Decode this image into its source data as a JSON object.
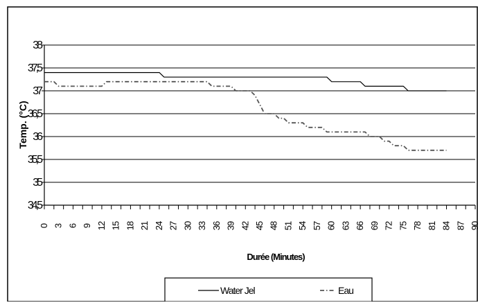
{
  "chart_data": {
    "type": "line",
    "xlabel": "Durée (Minutes)",
    "ylabel": "Temp. (°C)",
    "ylim": [
      34.5,
      38
    ],
    "yticks": [
      34.5,
      35,
      35.5,
      36,
      36.5,
      37,
      37.5,
      38
    ],
    "ytick_labels": [
      "34,5",
      "35",
      "35,5",
      "36",
      "36,5",
      "37",
      "37,5",
      "38"
    ],
    "x": [
      0,
      1,
      2,
      3,
      4,
      5,
      6,
      7,
      8,
      9,
      10,
      11,
      12,
      13,
      14,
      15,
      16,
      17,
      18,
      19,
      20,
      21,
      22,
      23,
      24,
      25,
      26,
      27,
      28,
      29,
      30,
      31,
      32,
      33,
      34,
      35,
      36,
      37,
      38,
      39,
      40,
      41,
      42,
      43,
      44,
      45,
      46,
      47,
      48,
      49,
      50,
      51,
      52,
      53,
      54,
      55,
      56,
      57,
      58,
      59,
      60,
      61,
      62,
      63,
      64,
      65,
      66,
      67,
      68,
      69,
      70,
      71,
      72,
      73,
      74,
      75,
      76,
      77,
      78,
      79,
      80,
      81,
      82,
      83,
      84,
      85,
      86,
      87,
      88,
      89,
      90
    ],
    "xtick_labels": [
      "0",
      "3",
      "6",
      "9",
      "12",
      "15",
      "18",
      "21",
      "24",
      "27",
      "30",
      "33",
      "36",
      "39",
      "42",
      "45",
      "48",
      "51",
      "54",
      "57",
      "60",
      "63",
      "66",
      "69",
      "72",
      "75",
      "78",
      "81",
      "84",
      "87",
      "90"
    ],
    "grid": "horizontal",
    "legend_position": "bottom",
    "series": [
      {
        "name": "Water Jel",
        "style": "solid",
        "color": "#000000",
        "values": [
          37.4,
          37.4,
          37.4,
          37.4,
          37.4,
          37.4,
          37.4,
          37.4,
          37.4,
          37.4,
          37.4,
          37.4,
          37.4,
          37.4,
          37.4,
          37.4,
          37.4,
          37.4,
          37.4,
          37.4,
          37.4,
          37.4,
          37.4,
          37.4,
          37.4,
          37.3,
          37.3,
          37.3,
          37.3,
          37.3,
          37.3,
          37.3,
          37.3,
          37.3,
          37.3,
          37.3,
          37.3,
          37.3,
          37.3,
          37.3,
          37.3,
          37.3,
          37.3,
          37.3,
          37.3,
          37.3,
          37.3,
          37.3,
          37.3,
          37.3,
          37.3,
          37.3,
          37.3,
          37.3,
          37.3,
          37.3,
          37.3,
          37.3,
          37.3,
          37.3,
          37.2,
          37.2,
          37.2,
          37.2,
          37.2,
          37.2,
          37.2,
          37.1,
          37.1,
          37.1,
          37.1,
          37.1,
          37.1,
          37.1,
          37.1,
          37.1,
          37.0,
          37.0,
          37.0,
          37.0,
          37.0,
          37.0,
          37.0,
          37.0,
          37.0,
          37.0,
          37.1,
          37.1,
          37.1,
          37.0,
          37.0
        ],
        "x_end": 84
      },
      {
        "name": "Eau",
        "style": "dashdot",
        "color": "#555555",
        "values": [
          37.2,
          37.2,
          37.2,
          37.1,
          37.1,
          37.1,
          37.1,
          37.1,
          37.1,
          37.1,
          37.1,
          37.1,
          37.1,
          37.2,
          37.2,
          37.2,
          37.2,
          37.2,
          37.2,
          37.2,
          37.2,
          37.2,
          37.2,
          37.2,
          37.2,
          37.2,
          37.2,
          37.2,
          37.2,
          37.2,
          37.2,
          37.2,
          37.2,
          37.2,
          37.2,
          37.1,
          37.1,
          37.1,
          37.1,
          37.1,
          37.0,
          37.0,
          37.0,
          37.0,
          36.9,
          36.7,
          36.5,
          36.5,
          36.5,
          36.4,
          36.4,
          36.3,
          36.3,
          36.3,
          36.3,
          36.2,
          36.2,
          36.2,
          36.2,
          36.1,
          36.1,
          36.1,
          36.1,
          36.1,
          36.1,
          36.1,
          36.1,
          36.1,
          36.0,
          36.0,
          36.0,
          35.9,
          35.9,
          35.8,
          35.8,
          35.8,
          35.7,
          35.7,
          35.7,
          35.7,
          35.7,
          35.7,
          35.7,
          35.7,
          35.7,
          35.7,
          35.7,
          35.7,
          35.7,
          35.7,
          35.7
        ],
        "x_end": 84
      }
    ]
  }
}
